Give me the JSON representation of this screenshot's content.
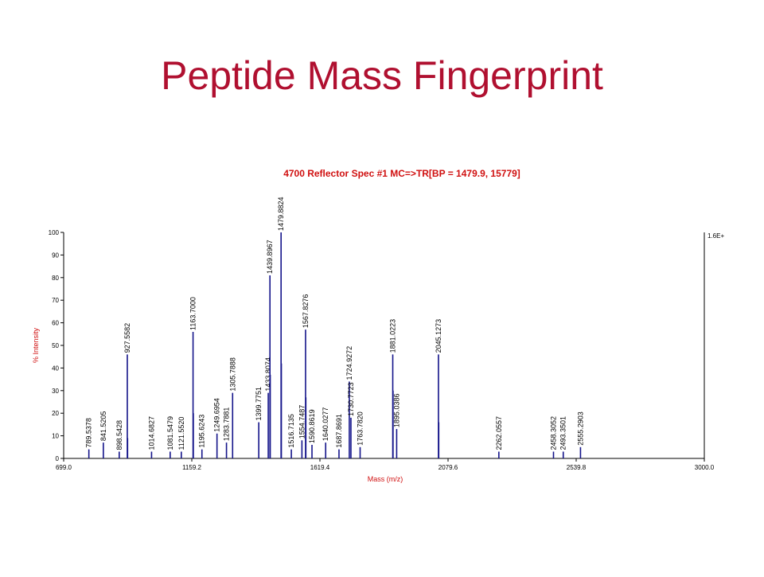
{
  "slide_title": "Peptide Mass Fingerprint",
  "chart_data": {
    "type": "spectrum",
    "title": "4700 Reflector Spec #1 MC=>TR[BP = 1479.9, 15779]",
    "xlabel": "Mass (m/z)",
    "ylabel": "% Intensity",
    "y2_label": "1.6E+",
    "color": "#14148a",
    "x": [
      789.5378,
      841.5205,
      898.5428,
      927.5582,
      928.56,
      1014.6827,
      1081.5479,
      1121.552,
      1163.7,
      1164.7,
      1195.6243,
      1249.6954,
      1283.7881,
      1305.7888,
      1399.7751,
      1433.8074,
      1439.8967,
      1440.9,
      1479.8824,
      1480.88,
      1516.7135,
      1554.7487,
      1567.8276,
      1568.83,
      1590.8619,
      1640.0277,
      1687.8691,
      1724.9272,
      1730.7723,
      1763.782,
      1881.0223,
      1882.02,
      1895.0386,
      2045.1273,
      2046.13,
      2262.0557,
      2458.3052,
      2493.3501,
      2555.2903
    ],
    "values": [
      4,
      7,
      3,
      46,
      9,
      3,
      3,
      3,
      56,
      20,
      4,
      11,
      7,
      29,
      16,
      29,
      81,
      37,
      100,
      42,
      4,
      8,
      57,
      27,
      6,
      7,
      4,
      34,
      18,
      5,
      46,
      30,
      13,
      46,
      16,
      3,
      3,
      3,
      5
    ],
    "labels": [
      "789.5378",
      "841.5205",
      "898.5428",
      "927.5582",
      null,
      "1014.6827",
      "1081.5479",
      "1121.5520",
      "1163.7000",
      null,
      "1195.6243",
      "1249.6954",
      "1283.7881",
      "1305.7888",
      "1399.7751",
      "1433.8074",
      "1439.8967",
      null,
      "1479.8824",
      null,
      "1516.7135",
      "1554.7487",
      "1567.8276",
      null,
      "1590.8619",
      "1640.0277",
      "1687.8691",
      "1724.9272",
      "1730.7723",
      "1763.7820",
      "1881.0223",
      null,
      "1895.0386",
      "2045.1273",
      null,
      "2262.0557",
      "2458.3052",
      "2493.3501",
      "2555.2903"
    ],
    "xlim": [
      699,
      3000
    ],
    "xticks": [
      {
        "value": 699,
        "label": "699.0"
      },
      1159.2,
      1619.4,
      2079.6,
      2539.8,
      {
        "value": 3000,
        "label": "3000.0"
      }
    ],
    "ylim": [
      0,
      100
    ],
    "yticks": [
      0,
      10,
      20,
      30,
      40,
      50,
      60,
      70,
      80,
      90,
      100
    ]
  }
}
